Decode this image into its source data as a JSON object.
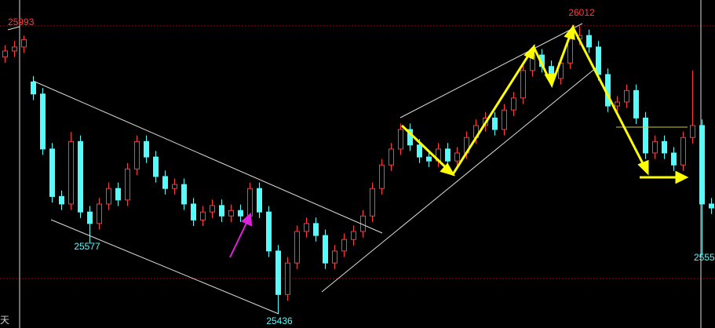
{
  "chart_data": {
    "type": "candlestick",
    "open": [
      25950,
      25962,
      25970,
      25900,
      25876,
      25766,
      25671,
      25656,
      25781,
      25640,
      25617,
      25656,
      25687,
      25664,
      25726,
      25781,
      25750,
      25711,
      25687,
      25695,
      25656,
      25624,
      25640,
      25653,
      25632,
      25643,
      25632,
      25687,
      25640,
      25562,
      25475,
      25538,
      25601,
      25617,
      25593,
      25538,
      25562,
      25585,
      25601,
      25632,
      25687,
      25734,
      25766,
      25805,
      25774,
      25750,
      25742,
      25766,
      25742,
      25758,
      25789,
      25813,
      25828,
      25805,
      25844,
      25868,
      25923,
      25954,
      25931,
      25907,
      25938,
      25986,
      25993,
      25970,
      25915,
      25852,
      25860,
      25883,
      25828,
      25758,
      25781,
      25758,
      25734,
      25789,
      25813,
      25656
    ],
    "high": [
      25974,
      25982,
      25993,
      25912,
      25888,
      25778,
      25683,
      25800,
      25793,
      25652,
      25668,
      25699,
      25699,
      25738,
      25793,
      25793,
      25762,
      25723,
      25707,
      25707,
      25668,
      25652,
      25665,
      25665,
      25655,
      25655,
      25699,
      25699,
      25652,
      25574,
      25550,
      25613,
      25629,
      25629,
      25605,
      25574,
      25597,
      25613,
      25644,
      25699,
      25746,
      25778,
      25817,
      25817,
      25786,
      25762,
      25778,
      25778,
      25770,
      25801,
      25825,
      25840,
      25840,
      25856,
      25880,
      25935,
      25966,
      25966,
      25943,
      25950,
      25998,
      26012,
      26005,
      25982,
      25927,
      25872,
      25895,
      25895,
      25840,
      25793,
      25793,
      25770,
      25801,
      25923,
      25825,
      25668
    ],
    "low": [
      25938,
      25950,
      25958,
      25864,
      25754,
      25659,
      25644,
      25644,
      25628,
      25577,
      25605,
      25644,
      25652,
      25652,
      25714,
      25738,
      25699,
      25675,
      25675,
      25644,
      25612,
      25612,
      25628,
      25620,
      25620,
      25620,
      25620,
      25628,
      25550,
      25436,
      25463,
      25526,
      25589,
      25581,
      25526,
      25526,
      25550,
      25573,
      25589,
      25620,
      25675,
      25722,
      25754,
      25762,
      25738,
      25730,
      25730,
      25730,
      25730,
      25746,
      25777,
      25801,
      25793,
      25793,
      25832,
      25856,
      25911,
      25919,
      25895,
      25895,
      25926,
      25974,
      25958,
      25903,
      25840,
      25840,
      25848,
      25816,
      25746,
      25746,
      25746,
      25722,
      25722,
      25777,
      25553,
      25636
    ],
    "close": [
      25962,
      25970,
      25985,
      25876,
      25766,
      25671,
      25656,
      25781,
      25640,
      25617,
      25656,
      25687,
      25664,
      25726,
      25781,
      25750,
      25711,
      25687,
      25695,
      25656,
      25624,
      25640,
      25653,
      25632,
      25643,
      25632,
      25687,
      25640,
      25562,
      25475,
      25538,
      25601,
      25617,
      25593,
      25538,
      25562,
      25585,
      25601,
      25632,
      25687,
      25734,
      25766,
      25805,
      25774,
      25750,
      25742,
      25766,
      25742,
      25758,
      25789,
      25813,
      25828,
      25805,
      25844,
      25868,
      25923,
      25954,
      25931,
      25907,
      25938,
      25986,
      25993,
      25970,
      25915,
      25852,
      25860,
      25883,
      25828,
      25758,
      25781,
      25758,
      25734,
      25789,
      25813,
      25656,
      25648
    ],
    "up_color": "#ff3c3c",
    "down_color": "#54fcfc",
    "ylim": [
      25408,
      26064
    ],
    "annotations": [
      {
        "text": "25993"
      },
      {
        "text": "26012"
      },
      {
        "text": "25577"
      },
      {
        "text": "25436"
      },
      {
        "text": "2555"
      }
    ],
    "corner_label": "天"
  }
}
